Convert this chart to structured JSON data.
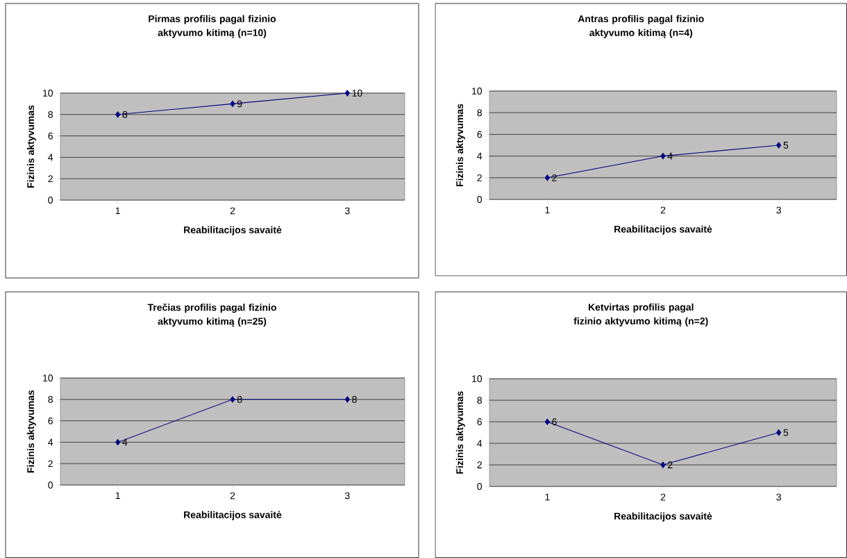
{
  "chart_data": [
    {
      "type": "line",
      "title": "Pirmas profilis pagal fizinio aktyvumo kitimą (n=10)",
      "xlabel": "Reabilitacijos savaitė",
      "ylabel": "Fizinis aktyvumas",
      "categories": [
        "1",
        "2",
        "3"
      ],
      "series": [
        {
          "color": "#000080",
          "values": [
            8,
            9,
            10
          ]
        }
      ],
      "ylim": [
        0,
        10
      ],
      "yticks": [
        0,
        2,
        4,
        6,
        8,
        10
      ],
      "grid": "y",
      "marker": "diamond",
      "line_style": "solid",
      "data_labels": true
    },
    {
      "type": "line",
      "title": "Antras profilis pagal fizinio aktyvumo kitimą (n=4)",
      "xlabel": "Reabilitacijos savaitė",
      "ylabel": "Fizinis aktyvumas",
      "categories": [
        "1",
        "2",
        "3"
      ],
      "series": [
        {
          "color": "#000080",
          "values": [
            2,
            4,
            5
          ]
        }
      ],
      "ylim": [
        0,
        10
      ],
      "yticks": [
        0,
        2,
        4,
        6,
        8,
        10
      ],
      "grid": "y",
      "marker": "diamond",
      "line_style": "solid",
      "data_labels": true
    },
    {
      "type": "line",
      "title": "Trečias profilis pagal fizinio aktyvumo kitimą (n=25)",
      "xlabel": "Reabilitacijos savaitė",
      "ylabel": "Fizinis aktyvumas",
      "categories": [
        "1",
        "2",
        "3"
      ],
      "series": [
        {
          "color": "#000080",
          "values": [
            4,
            8,
            8
          ]
        }
      ],
      "ylim": [
        0,
        10
      ],
      "yticks": [
        0,
        2,
        4,
        6,
        8,
        10
      ],
      "grid": "y",
      "marker": "diamond",
      "line_style": "solid",
      "data_labels": true
    },
    {
      "type": "line",
      "title": "Ketvirtas profilis pagal fizinio aktyvumo kitimą (n=2)",
      "xlabel": "Reabilitacijos savaitė",
      "ylabel": "Fizinis aktyvumas",
      "categories": [
        "1",
        "2",
        "3"
      ],
      "series": [
        {
          "color": "#000080",
          "values": [
            6,
            2,
            5
          ]
        }
      ],
      "ylim": [
        0,
        10
      ],
      "yticks": [
        0,
        2,
        4,
        6,
        8,
        10
      ],
      "grid": "y",
      "marker": "diamond",
      "line_style": "solid",
      "data_labels": true
    }
  ]
}
